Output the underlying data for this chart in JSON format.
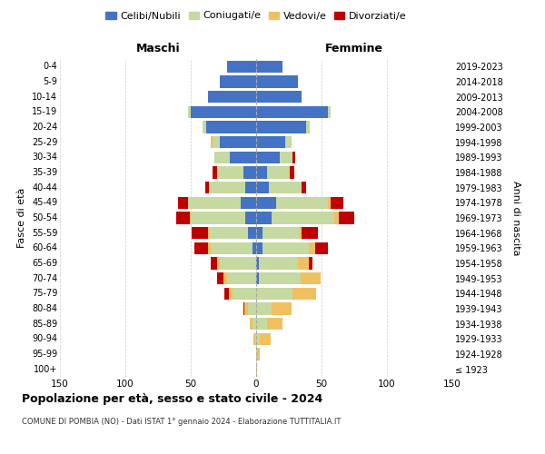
{
  "age_groups": [
    "100+",
    "95-99",
    "90-94",
    "85-89",
    "80-84",
    "75-79",
    "70-74",
    "65-69",
    "60-64",
    "55-59",
    "50-54",
    "45-49",
    "40-44",
    "35-39",
    "30-34",
    "25-29",
    "20-24",
    "15-19",
    "10-14",
    "5-9",
    "0-4"
  ],
  "birth_years": [
    "≤ 1923",
    "1924-1928",
    "1929-1933",
    "1934-1938",
    "1939-1943",
    "1944-1948",
    "1949-1953",
    "1954-1958",
    "1959-1963",
    "1964-1968",
    "1969-1973",
    "1974-1978",
    "1979-1983",
    "1984-1988",
    "1989-1993",
    "1994-1998",
    "1999-2003",
    "2004-2008",
    "2009-2013",
    "2014-2018",
    "2019-2023"
  ],
  "male_celibi": [
    0,
    0,
    0,
    0,
    0,
    0,
    0,
    0,
    3,
    6,
    8,
    12,
    8,
    10,
    20,
    28,
    38,
    50,
    37,
    28,
    22
  ],
  "male_coniugati": [
    0,
    0,
    1,
    3,
    6,
    18,
    22,
    28,
    32,
    30,
    42,
    40,
    28,
    20,
    12,
    5,
    3,
    2,
    0,
    0,
    0
  ],
  "male_vedovi": [
    0,
    0,
    1,
    2,
    3,
    3,
    3,
    2,
    2,
    1,
    1,
    0,
    0,
    0,
    0,
    2,
    0,
    0,
    0,
    0,
    0
  ],
  "male_divorziati": [
    0,
    0,
    0,
    0,
    1,
    3,
    5,
    5,
    10,
    12,
    10,
    8,
    3,
    3,
    0,
    0,
    0,
    0,
    0,
    0,
    0
  ],
  "female_celibi": [
    0,
    0,
    0,
    0,
    0,
    0,
    2,
    2,
    5,
    5,
    12,
    15,
    10,
    8,
    18,
    22,
    38,
    55,
    35,
    32,
    20
  ],
  "female_coniugati": [
    0,
    1,
    3,
    8,
    12,
    28,
    32,
    30,
    35,
    28,
    48,
    40,
    25,
    18,
    10,
    5,
    3,
    2,
    0,
    0,
    0
  ],
  "female_vedovi": [
    1,
    2,
    8,
    12,
    15,
    18,
    15,
    8,
    5,
    2,
    3,
    2,
    0,
    0,
    0,
    0,
    0,
    0,
    0,
    0,
    0
  ],
  "female_divorziati": [
    0,
    0,
    0,
    0,
    0,
    0,
    0,
    3,
    10,
    12,
    12,
    10,
    3,
    3,
    2,
    0,
    0,
    0,
    0,
    0,
    0
  ],
  "color_celibi": "#4472c4",
  "color_coniugati": "#c5d9a0",
  "color_vedovi": "#f0c060",
  "color_divorziati": "#c00000",
  "title_bold": "Popolazione per età, sesso e stato civile - 2024",
  "subtitle": "COMUNE DI POMBIA (NO) - Dati ISTAT 1° gennaio 2024 - Elaborazione TUTTITALIA.IT",
  "xlabel_left": "Maschi",
  "xlabel_right": "Femmine",
  "ylabel_left": "Fasce di età",
  "ylabel_right": "Anni di nascita",
  "xlim": 150,
  "background_color": "#ffffff",
  "legend_labels": [
    "Celibi/Nubili",
    "Coniugati/e",
    "Vedovi/e",
    "Divorziati/e"
  ]
}
